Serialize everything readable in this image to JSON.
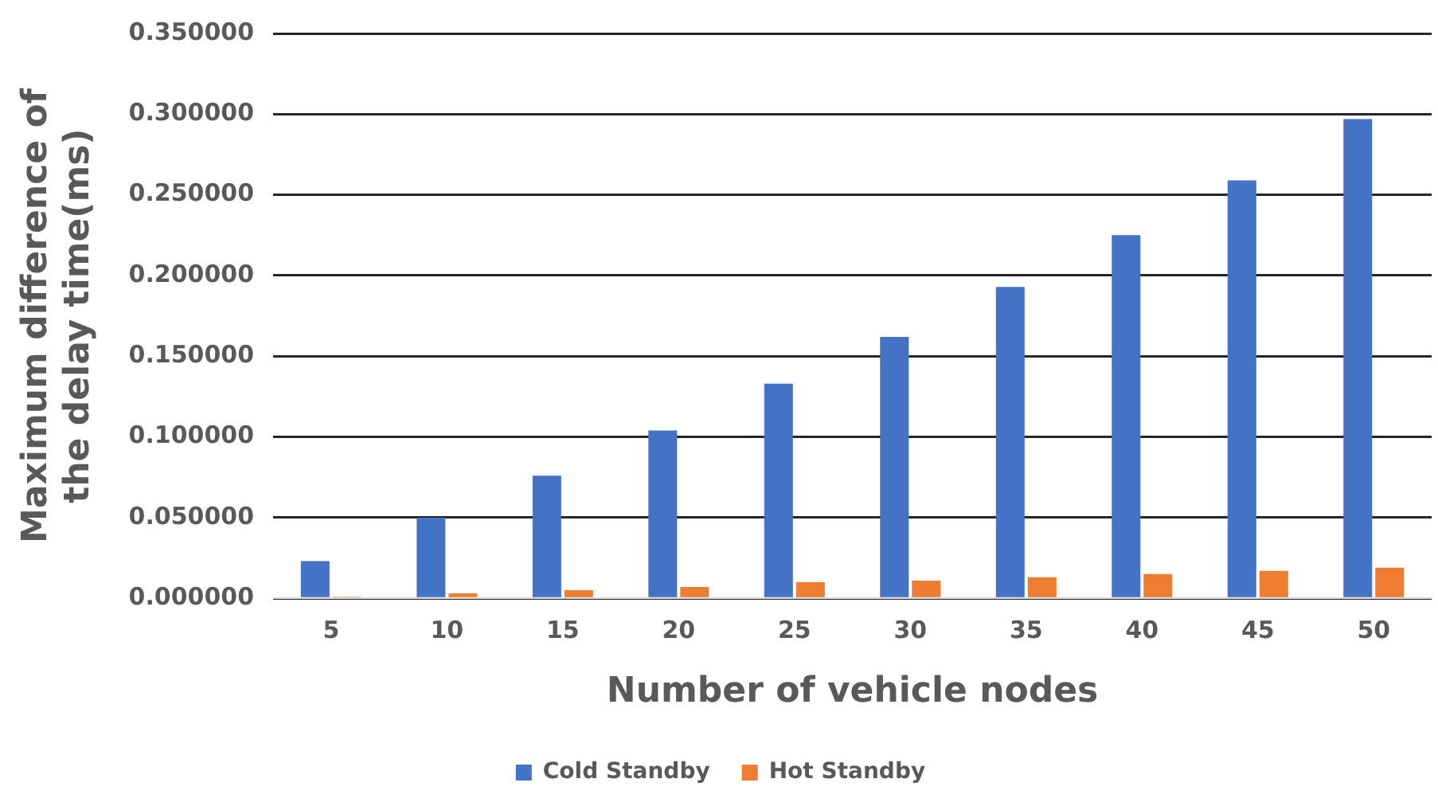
{
  "chart_data": {
    "type": "bar",
    "xlabel": "Number of vehicle nodes",
    "ylabel": "Maximum difference of the delay time(ms)",
    "categories": [
      "5",
      "10",
      "15",
      "20",
      "25",
      "30",
      "35",
      "40",
      "45",
      "50"
    ],
    "series": [
      {
        "name": "Cold Standby",
        "color": "#4472c4",
        "values": [
          0.023,
          0.05,
          0.076,
          0.104,
          0.133,
          0.162,
          0.193,
          0.225,
          0.259,
          0.297
        ]
      },
      {
        "name": "Hot Standby",
        "color": "#ed7d31",
        "values": [
          0.001,
          0.003,
          0.005,
          0.007,
          0.01,
          0.011,
          0.013,
          0.015,
          0.017,
          0.019
        ]
      }
    ],
    "ylim": [
      0,
      0.35
    ],
    "yticks": [
      {
        "value": 0,
        "label": "0.000000"
      },
      {
        "value": 0.05,
        "label": "0.050000"
      },
      {
        "value": 0.1,
        "label": "0.100000"
      },
      {
        "value": 0.15,
        "label": "0.150000"
      },
      {
        "value": 0.2,
        "label": "0.200000"
      },
      {
        "value": 0.25,
        "label": "0.250000"
      },
      {
        "value": 0.3,
        "label": "0.300000"
      },
      {
        "value": 0.35,
        "label": "0.350000"
      }
    ],
    "grid": "y",
    "legend": "bottom"
  }
}
